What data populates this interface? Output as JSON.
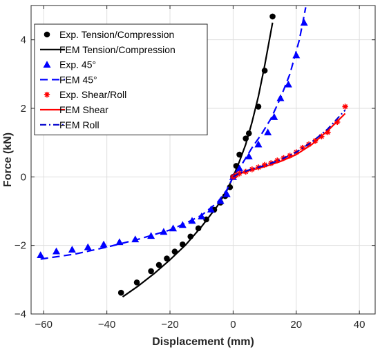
{
  "chart_data": {
    "type": "line",
    "title": "",
    "xlabel": "Displacement (mm)",
    "ylabel": "Force (kN)",
    "xlim": [
      -64,
      45
    ],
    "ylim": [
      -4,
      5
    ],
    "xticks": [
      -60,
      -40,
      -20,
      0,
      20,
      40
    ],
    "yticks": [
      -4,
      -2,
      0,
      2,
      4
    ],
    "grid": true,
    "legend_position": "top-left",
    "series": [
      {
        "name": "Exp. Tension/Compression",
        "kind": "markers",
        "marker": "circle",
        "color": "#000000",
        "points": [
          [
            -35.5,
            -3.38
          ],
          [
            -30.5,
            -3.08
          ],
          [
            -26,
            -2.75
          ],
          [
            -23.5,
            -2.57
          ],
          [
            -21,
            -2.38
          ],
          [
            -18.5,
            -2.18
          ],
          [
            -16,
            -1.97
          ],
          [
            -13.5,
            -1.74
          ],
          [
            -11,
            -1.5
          ],
          [
            -8.5,
            -1.24
          ],
          [
            -6,
            -0.96
          ],
          [
            -4,
            -0.75
          ],
          [
            -2.5,
            -0.56
          ],
          [
            -1,
            -0.3
          ],
          [
            0,
            0
          ],
          [
            1,
            0.32
          ],
          [
            2,
            0.65
          ],
          [
            4,
            1.12
          ],
          [
            5,
            1.27
          ],
          [
            8,
            2.05
          ],
          [
            10,
            3.1
          ],
          [
            12.5,
            4.68
          ]
        ]
      },
      {
        "name": "FEM Tension/Compression",
        "kind": "line",
        "dash": "solid",
        "color": "#000000",
        "points": [
          [
            -35,
            -3.5
          ],
          [
            -30,
            -3.18
          ],
          [
            -25,
            -2.82
          ],
          [
            -20,
            -2.42
          ],
          [
            -15,
            -1.98
          ],
          [
            -10,
            -1.45
          ],
          [
            -5,
            -0.85
          ],
          [
            -2,
            -0.4
          ],
          [
            0,
            0
          ],
          [
            2,
            0.45
          ],
          [
            4,
            0.95
          ],
          [
            6,
            1.6
          ],
          [
            8,
            2.35
          ],
          [
            10,
            3.25
          ],
          [
            12.5,
            4.5
          ]
        ]
      },
      {
        "name": "Exp. 45°",
        "kind": "markers",
        "marker": "triangle",
        "color": "#0000ff",
        "points": [
          [
            -61,
            -2.28
          ],
          [
            -56,
            -2.17
          ],
          [
            -51,
            -2.12
          ],
          [
            -46,
            -2.05
          ],
          [
            -41,
            -1.97
          ],
          [
            -36,
            -1.9
          ],
          [
            -31,
            -1.82
          ],
          [
            -26,
            -1.72
          ],
          [
            -22,
            -1.6
          ],
          [
            -19,
            -1.5
          ],
          [
            -16,
            -1.4
          ],
          [
            -13,
            -1.28
          ],
          [
            -10,
            -1.15
          ],
          [
            -7,
            -0.95
          ],
          [
            -4,
            -0.7
          ],
          [
            -2,
            -0.5
          ],
          [
            0,
            0
          ],
          [
            2,
            0.25
          ],
          [
            5,
            0.6
          ],
          [
            8,
            0.95
          ],
          [
            11,
            1.3
          ],
          [
            13,
            1.75
          ],
          [
            15,
            2.3
          ],
          [
            17.5,
            2.7
          ],
          [
            20,
            3.55
          ],
          [
            22.5,
            4.5
          ]
        ]
      },
      {
        "name": "FEM 45°",
        "kind": "line",
        "dash": "dash",
        "color": "#0000ff",
        "points": [
          [
            -61,
            -2.4
          ],
          [
            -50,
            -2.25
          ],
          [
            -40,
            -2.05
          ],
          [
            -30,
            -1.82
          ],
          [
            -20,
            -1.55
          ],
          [
            -15,
            -1.35
          ],
          [
            -10,
            -1.12
          ],
          [
            -5,
            -0.75
          ],
          [
            -2,
            -0.38
          ],
          [
            0,
            0
          ],
          [
            3,
            0.4
          ],
          [
            6,
            0.85
          ],
          [
            9,
            1.25
          ],
          [
            12,
            1.7
          ],
          [
            15,
            2.3
          ],
          [
            18,
            3.0
          ],
          [
            21,
            4.0
          ],
          [
            23,
            4.95
          ]
        ]
      },
      {
        "name": "Exp. Shear/Roll",
        "kind": "markers",
        "marker": "asterisk",
        "color": "#ff0000",
        "points": [
          [
            0,
            0
          ],
          [
            1,
            0.05
          ],
          [
            2,
            0.1
          ],
          [
            4,
            0.15
          ],
          [
            6,
            0.22
          ],
          [
            8,
            0.28
          ],
          [
            10,
            0.35
          ],
          [
            12,
            0.4
          ],
          [
            14,
            0.48
          ],
          [
            16,
            0.55
          ],
          [
            18,
            0.62
          ],
          [
            20,
            0.72
          ],
          [
            22,
            0.85
          ],
          [
            24,
            0.95
          ],
          [
            26,
            1.05
          ],
          [
            28,
            1.18
          ],
          [
            30,
            1.3
          ],
          [
            33,
            1.6
          ],
          [
            35.5,
            2.05
          ]
        ]
      },
      {
        "name": "FEM Shear",
        "kind": "line",
        "dash": "solid",
        "color": "#ff0000",
        "points": [
          [
            0,
            0
          ],
          [
            2,
            0.1
          ],
          [
            5,
            0.18
          ],
          [
            10,
            0.3
          ],
          [
            15,
            0.45
          ],
          [
            20,
            0.65
          ],
          [
            25,
            0.95
          ],
          [
            30,
            1.35
          ],
          [
            35.5,
            1.85
          ]
        ]
      },
      {
        "name": "FEM Roll",
        "kind": "line",
        "dash": "dashdot",
        "color": "#0000cd",
        "points": [
          [
            0,
            0
          ],
          [
            2,
            0.11
          ],
          [
            5,
            0.2
          ],
          [
            10,
            0.33
          ],
          [
            15,
            0.5
          ],
          [
            20,
            0.72
          ],
          [
            25,
            1.02
          ],
          [
            30,
            1.4
          ],
          [
            35.5,
            1.95
          ]
        ]
      }
    ]
  }
}
